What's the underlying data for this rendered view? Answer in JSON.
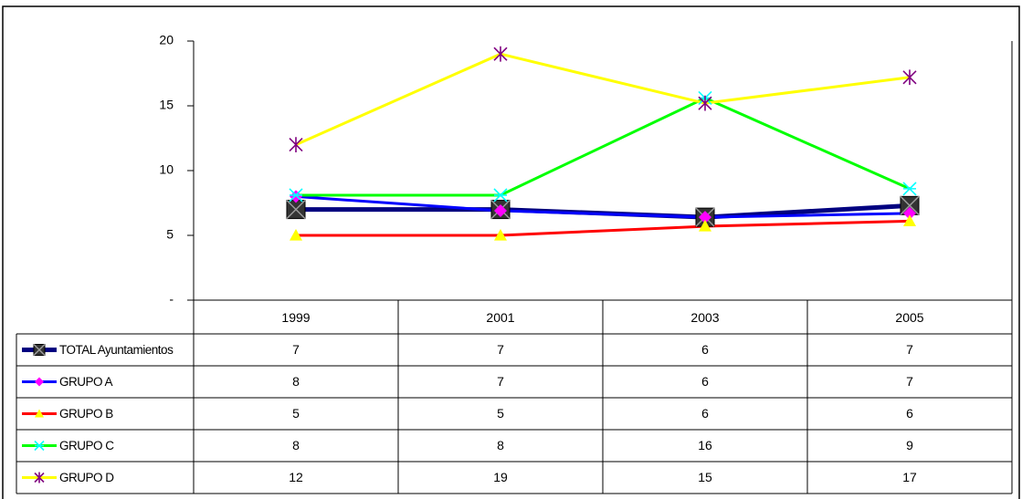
{
  "chart_data": {
    "type": "line",
    "categories": [
      "1999",
      "2001",
      "2003",
      "2005"
    ],
    "ylim": [
      0,
      20
    ],
    "yticks": [
      {
        "value": 0,
        "label": "-"
      },
      5,
      10,
      15,
      20
    ],
    "grid": false,
    "series": [
      {
        "name": "TOTAL Ayuntamientos",
        "color": "#000080",
        "marker_color": "#333333",
        "marker": "square",
        "width": 5,
        "values": [
          7.0,
          7.0,
          6.4,
          7.3
        ],
        "value_labels": [
          "7",
          "7",
          "6",
          "7"
        ]
      },
      {
        "name": "GRUPO A",
        "color": "#0000ff",
        "marker_color": "#ff00ff",
        "marker": "diamond",
        "width": 3,
        "values": [
          8.0,
          6.9,
          6.4,
          6.7
        ],
        "value_labels": [
          "8",
          "7",
          "6",
          "7"
        ]
      },
      {
        "name": "GRUPO B",
        "color": "#ff0000",
        "marker_color": "#ffff00",
        "marker": "triangle",
        "width": 3,
        "values": [
          5.0,
          5.0,
          5.7,
          6.1
        ],
        "value_labels": [
          "5",
          "5",
          "6",
          "6"
        ]
      },
      {
        "name": "GRUPO C",
        "color": "#00ff00",
        "marker_color": "#00ffff",
        "marker": "cross",
        "width": 3,
        "values": [
          8.1,
          8.1,
          15.6,
          8.6
        ],
        "value_labels": [
          "8",
          "8",
          "16",
          "9"
        ]
      },
      {
        "name": "GRUPO D",
        "color": "#ffff00",
        "marker_color": "#800080",
        "marker": "star",
        "width": 3,
        "values": [
          12.0,
          19.0,
          15.2,
          17.2
        ],
        "value_labels": [
          "12",
          "19",
          "15",
          "17"
        ]
      }
    ]
  }
}
